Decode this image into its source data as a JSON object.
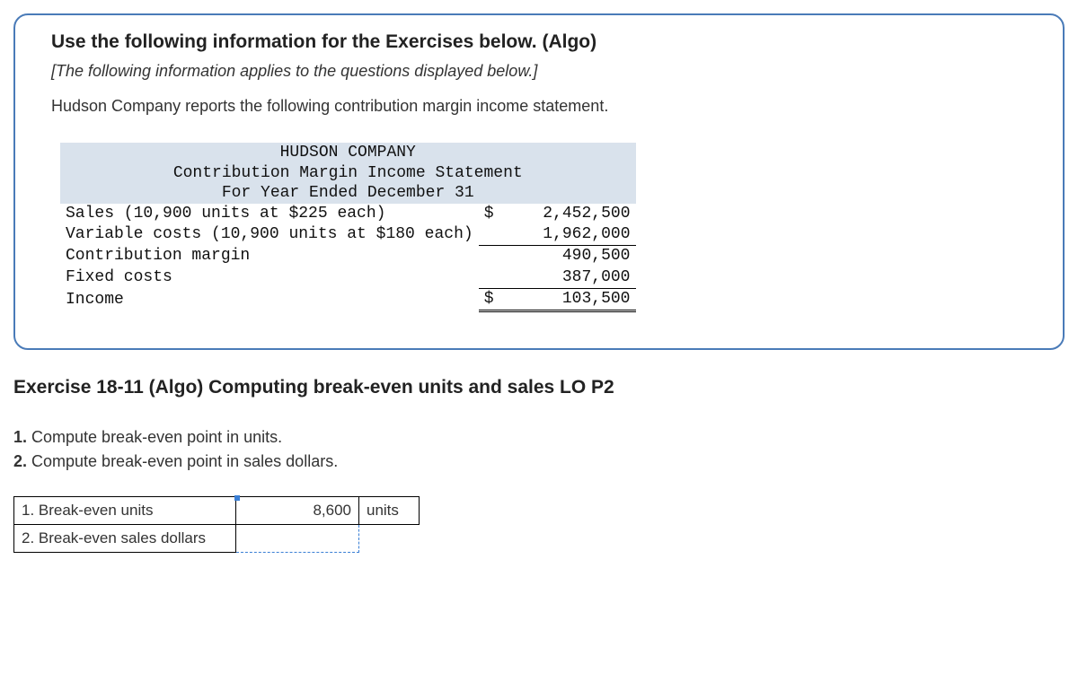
{
  "info_box": {
    "heading": "Use the following information for the Exercises below. (Algo)",
    "subheading": "[The following information applies to the questions displayed below.]",
    "body": "Hudson Company reports the following contribution margin income statement."
  },
  "statement": {
    "header_line1": "HUDSON COMPANY",
    "header_line2": "Contribution Margin Income Statement",
    "header_line3": "For Year Ended December 31",
    "rows": [
      {
        "label": "Sales (10,900 units at $225 each)",
        "dollar": "$",
        "amount": "2,452,500",
        "underline": false
      },
      {
        "label": "Variable costs (10,900 units at $180 each)",
        "dollar": "",
        "amount": "1,962,000",
        "underline": true
      },
      {
        "label": "Contribution margin",
        "dollar": "",
        "amount": "490,500",
        "underline": false
      },
      {
        "label": "Fixed costs",
        "dollar": "",
        "amount": "387,000",
        "underline": true
      },
      {
        "label": "Income",
        "dollar": "$",
        "amount": "103,500",
        "double": true
      }
    ],
    "colors": {
      "header_bg": "#d9e2ec",
      "text": "#111111"
    }
  },
  "exercise": {
    "title": "Exercise 18-11 (Algo) Computing break-even units and sales LO P2",
    "q1_num": "1.",
    "q1_text": " Compute break-even point in units.",
    "q2_num": "2.",
    "q2_text": " Compute break-even point in sales dollars."
  },
  "answer_table": {
    "row1_label": "1. Break-even units",
    "row1_value": "8,600",
    "row1_unit": "units",
    "row2_label": "2. Break-even sales dollars",
    "row2_value": "",
    "row2_unit": ""
  }
}
